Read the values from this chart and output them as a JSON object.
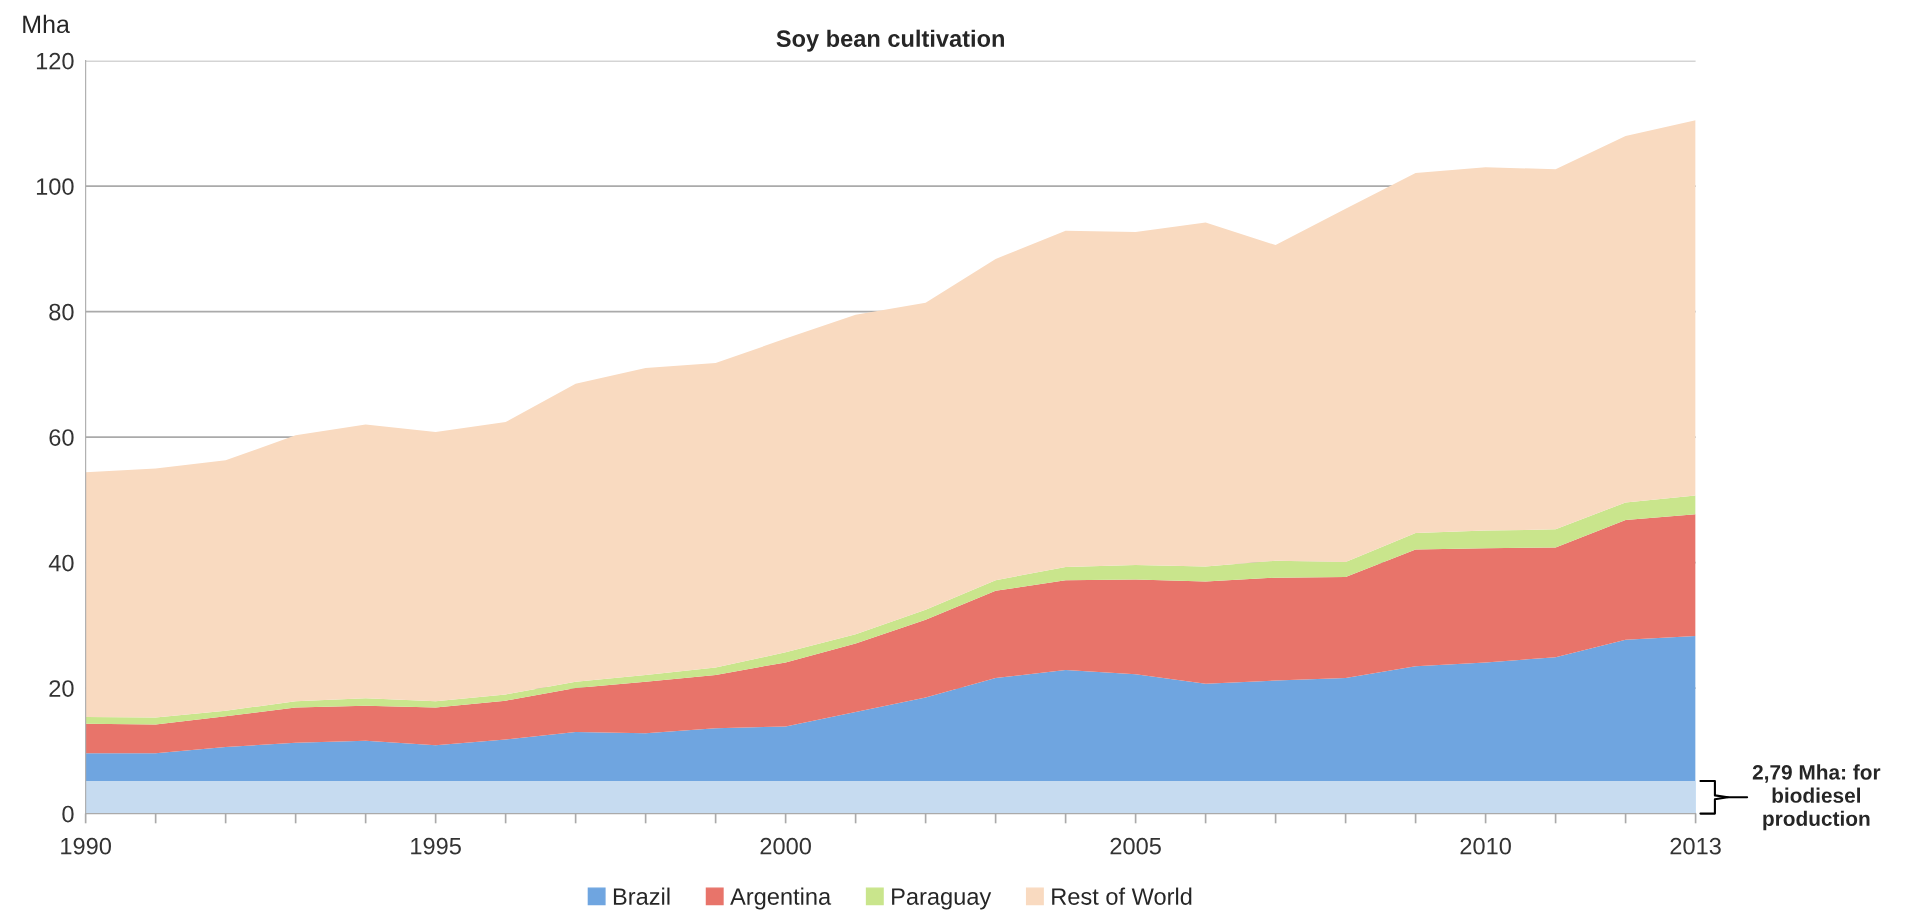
{
  "chart_data": {
    "type": "area",
    "stacked": true,
    "title": "Soy bean cultivation",
    "ylabel": "Mha",
    "x": [
      1990,
      1991,
      1992,
      1993,
      1994,
      1995,
      1996,
      1997,
      1998,
      1999,
      2000,
      2001,
      2002,
      2003,
      2004,
      2005,
      2006,
      2007,
      2008,
      2009,
      2010,
      2011,
      2012,
      2013
    ],
    "series": [
      {
        "name": "Brazil",
        "color": "#6fa5e0",
        "values": [
          9.6,
          9.6,
          10.6,
          11.3,
          11.6,
          10.9,
          11.8,
          13.0,
          12.8,
          13.6,
          13.9,
          16.2,
          18.5,
          21.6,
          22.9,
          22.2,
          20.7,
          21.2,
          21.6,
          23.5,
          24.1,
          24.9,
          27.7,
          28.3
        ]
      },
      {
        "name": "Argentina",
        "color": "#e8746a",
        "values": [
          4.7,
          4.6,
          4.9,
          5.6,
          5.6,
          6.0,
          6.2,
          7.0,
          8.2,
          8.5,
          10.2,
          10.9,
          12.4,
          13.9,
          14.3,
          15.1,
          16.3,
          16.4,
          16.1,
          18.6,
          18.2,
          17.5,
          19.1,
          19.4
        ]
      },
      {
        "name": "Paraguay",
        "color": "#c9e58c",
        "values": [
          1.1,
          1.1,
          0.9,
          1.0,
          1.2,
          1.0,
          1.0,
          1.0,
          1.1,
          1.2,
          1.6,
          1.5,
          1.6,
          1.7,
          2.1,
          2.3,
          2.4,
          2.7,
          2.4,
          2.6,
          2.8,
          2.9,
          2.8,
          3.0
        ]
      },
      {
        "name": "Rest of World",
        "color": "#f9dac0",
        "values": [
          39.0,
          39.7,
          39.9,
          42.4,
          43.6,
          42.9,
          43.4,
          47.5,
          48.9,
          48.5,
          50.0,
          50.9,
          48.9,
          51.2,
          53.6,
          53.1,
          54.8,
          50.3,
          56.3,
          57.4,
          57.9,
          57.4,
          58.4,
          59.8
        ]
      }
    ],
    "xlim": [
      1990,
      2013
    ],
    "xticks": [
      1990,
      {
        "value": 1991,
        "label": null
      },
      {
        "value": 1992,
        "label": null
      },
      {
        "value": 1993,
        "label": null
      },
      {
        "value": 1994,
        "label": null
      },
      1995,
      {
        "value": 1996,
        "label": null
      },
      {
        "value": 1997,
        "label": null
      },
      {
        "value": 1998,
        "label": null
      },
      {
        "value": 1999,
        "label": null
      },
      2000,
      {
        "value": 2001,
        "label": null
      },
      {
        "value": 2002,
        "label": null
      },
      {
        "value": 2003,
        "label": null
      },
      {
        "value": 2004,
        "label": null
      },
      2005,
      {
        "value": 2006,
        "label": null
      },
      {
        "value": 2007,
        "label": null
      },
      {
        "value": 2008,
        "label": null
      },
      {
        "value": 2009,
        "label": null
      },
      2010,
      {
        "value": 2011,
        "label": null
      },
      {
        "value": 2012,
        "label": null
      },
      2013
    ],
    "ylim": [
      0,
      120
    ],
    "yticks": [
      0,
      20,
      40,
      60,
      80,
      100,
      120
    ],
    "bands": [
      {
        "axis": "y",
        "from": 0,
        "to": 5.2,
        "label": "2,79 Mha: for biodiesel production",
        "color": "#c6dbf0"
      }
    ],
    "grid": "y",
    "legend": "bottom"
  }
}
